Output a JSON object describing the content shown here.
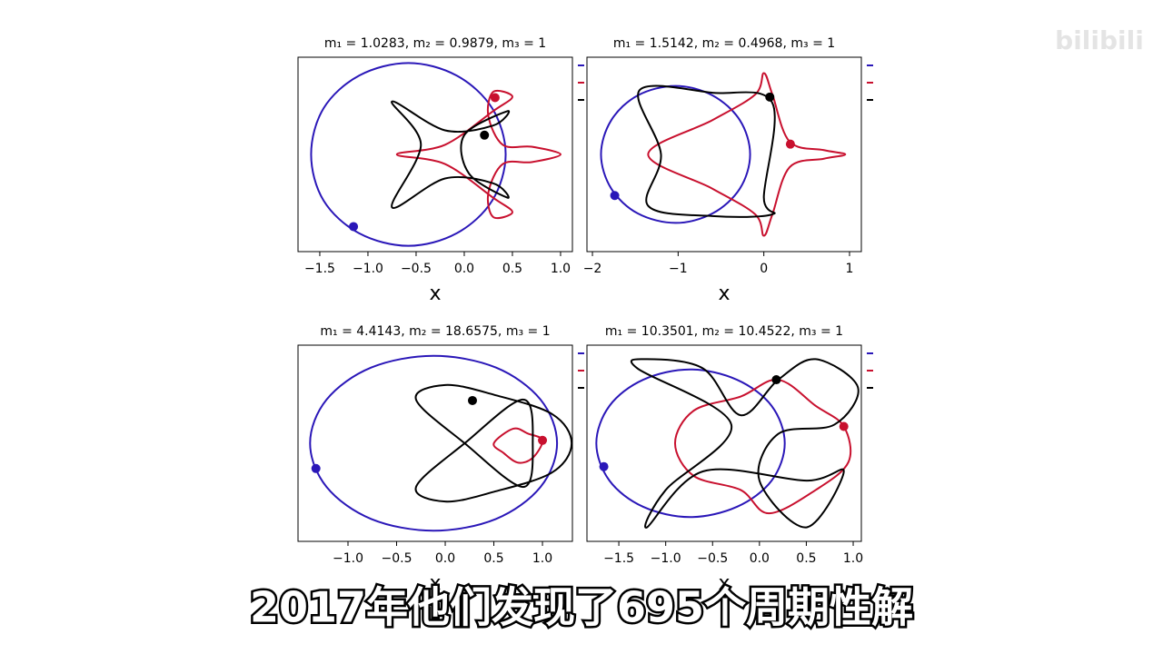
{
  "chart_data": [
    {
      "type": "orbit",
      "title": "m₁ = 1.0283, m₂ = 0.9879, m₃ = 1",
      "xlabel": "x",
      "xlim": [
        -1.726,
        1.123
      ],
      "ylim": [
        -1.01,
        1.01
      ],
      "xticks": [
        {
          "value": -1.5,
          "label": "−1.5"
        },
        {
          "value": -1,
          "label": "−1.0"
        },
        {
          "value": -0.5,
          "label": "−0.5"
        },
        {
          "value": 0,
          "label": "0.0"
        },
        0.5,
        {
          "value": 1,
          "label": "1.0"
        }
      ],
      "series": [
        {
          "color": "#2a17b8",
          "x": [
            0.43,
            0.29,
            -0.08,
            -0.58,
            -1.09,
            -1.46,
            -1.59,
            -1.46,
            -1.09,
            -0.58,
            -0.08,
            0.29
          ],
          "y": [
            0,
            0.48,
            0.82,
            0.95,
            0.82,
            0.48,
            0,
            -0.48,
            -0.82,
            -0.95,
            -0.82,
            -0.48
          ],
          "marker_x": -1.15,
          "marker_y": -0.75
        },
        {
          "color": "#c8102e",
          "x": [
            -0.7,
            -0.2,
            0.3,
            0.5,
            0.3,
            0.25,
            0.4,
            0.7,
            1.0,
            0.7,
            0.4,
            0.25,
            0.3,
            0.5,
            0.3,
            -0.2
          ],
          "y": [
            0,
            0.1,
            0.45,
            0.6,
            0.65,
            0.4,
            0.1,
            0.08,
            0,
            -0.08,
            -0.1,
            -0.4,
            -0.65,
            -0.6,
            -0.45,
            -0.1
          ],
          "marker_x": 0.32,
          "marker_y": 0.59
        },
        {
          "color": "#000000",
          "x": [
            -0.75,
            -0.45,
            -0.75,
            -0.2,
            0.3,
            0.45,
            0.05,
            0,
            0.45,
            0.3,
            -0.2
          ],
          "y": [
            0.55,
            0.1,
            -0.55,
            -0.25,
            -0.3,
            -0.45,
            -0.2,
            0.2,
            0.45,
            0.3,
            0.25
          ],
          "marker_x": 0.21,
          "marker_y": 0.2
        }
      ]
    },
    {
      "type": "orbit",
      "title": "m₁ = 1.5142, m₂ = 0.4968, m₃ = 1",
      "xlabel": "x",
      "xlim": [
        -2.064,
        1.138
      ],
      "ylim": [
        -1.135,
        1.135
      ],
      "xticks": [
        {
          "value": -2,
          "label": "−2"
        },
        {
          "value": -1,
          "label": "−1"
        },
        0,
        1
      ],
      "series": [
        {
          "color": "#2a17b8",
          "x": [
            -0.16,
            -0.28,
            -0.6,
            -1.03,
            -1.47,
            -1.78,
            -1.9,
            -1.78,
            -1.47,
            -1.03,
            -0.6,
            -0.28
          ],
          "y": [
            0,
            0.4,
            0.69,
            0.8,
            0.69,
            0.4,
            0,
            -0.4,
            -0.69,
            -0.8,
            -0.69,
            -0.4
          ],
          "marker_x": -1.74,
          "marker_y": -0.48
        },
        {
          "color": "#c8102e",
          "x": [
            -1.35,
            -0.6,
            -0.1,
            0,
            0.1,
            0.3,
            0.7,
            0.95,
            0.7,
            0.3,
            0.1,
            0,
            -0.1,
            -0.6
          ],
          "y": [
            0,
            0.4,
            0.7,
            0.95,
            0.7,
            0.15,
            0.05,
            0,
            -0.05,
            -0.15,
            -0.7,
            -0.95,
            -0.7,
            -0.4
          ],
          "marker_x": 0.31,
          "marker_y": 0.12
        },
        {
          "color": "#000000",
          "x": [
            -1.45,
            -0.6,
            0.1,
            0,
            0.1,
            -0.6,
            -1.35,
            -1.2
          ],
          "y": [
            0.75,
            0.72,
            0.6,
            -0.5,
            -0.7,
            -0.72,
            -0.6,
            0
          ],
          "marker_x": 0.07,
          "marker_y": 0.67
        }
      ]
    },
    {
      "type": "orbit",
      "title": "m₁ = 4.4143, m₂ = 18.6575, m₃ = 1",
      "xlabel": "x",
      "xlim": [
        -1.514,
        1.308
      ],
      "ylim": [
        -1.01,
        1.01
      ],
      "xticks": [
        {
          "value": -1,
          "label": "−1.0"
        },
        {
          "value": -0.5,
          "label": "−0.5"
        },
        {
          "value": 0,
          "label": "0.0"
        },
        0.5,
        {
          "value": 1,
          "label": "1.0"
        }
      ],
      "series": [
        {
          "color": "#2a17b8",
          "x": [
            1.15,
            0.98,
            0.52,
            -0.12,
            -0.76,
            -1.22,
            -1.39,
            -1.22,
            -0.76,
            -0.12,
            0.52,
            0.98
          ],
          "y": [
            0,
            0.45,
            0.78,
            0.9,
            0.78,
            0.45,
            0,
            -0.45,
            -0.78,
            -0.9,
            -0.78,
            -0.45
          ],
          "marker_x": -1.33,
          "marker_y": -0.26
        },
        {
          "color": "#c8102e",
          "x": [
            0.5,
            0.7,
            0.85,
            1.0,
            0.9,
            0.75,
            0.6
          ],
          "y": [
            0,
            0.15,
            0.1,
            0.03,
            -0.15,
            -0.2,
            -0.1
          ],
          "marker_x": 1.0,
          "marker_y": 0.03
        },
        {
          "color": "#000000",
          "x": [
            -0.3,
            0,
            0.5,
            1.1,
            1.3,
            1.1,
            0.5,
            0,
            -0.3,
            0.2,
            0.8,
            0.9,
            0.8,
            0.2
          ],
          "y": [
            0.45,
            0.6,
            0.5,
            0.3,
            0,
            -0.3,
            -0.5,
            -0.6,
            -0.45,
            0,
            0.45,
            0,
            -0.45,
            0
          ],
          "marker_x": 0.28,
          "marker_y": 0.44
        }
      ]
    },
    {
      "type": "orbit",
      "title": "m₁ = 10.3501, m₂ = 10.4522, m₃ = 1",
      "xlabel": "x",
      "xlim": [
        -1.84,
        1.087
      ],
      "ylim": [
        -1.05,
        1.05
      ],
      "xticks": [
        {
          "value": -1.5,
          "label": "−1.5"
        },
        {
          "value": -1,
          "label": "−1.0"
        },
        {
          "value": -0.5,
          "label": "−0.5"
        },
        {
          "value": 0,
          "label": "0.0"
        },
        0.5,
        {
          "value": 1,
          "label": "1.0"
        }
      ],
      "series": [
        {
          "color": "#2a17b8",
          "x": [
            0.27,
            0.13,
            -0.24,
            -0.74,
            -1.24,
            -1.6,
            -1.74,
            -1.6,
            -1.24,
            -0.74,
            -0.24,
            0.13
          ],
          "y": [
            0,
            0.4,
            0.68,
            0.79,
            0.68,
            0.4,
            0,
            -0.4,
            -0.68,
            -0.79,
            -0.68,
            -0.4
          ],
          "marker_x": -1.66,
          "marker_y": -0.25
        },
        {
          "color": "#c8102e",
          "x": [
            -0.9,
            -0.7,
            -0.2,
            0.2,
            0.6,
            0.9,
            0.95,
            0.6,
            0.1,
            -0.2,
            -0.7
          ],
          "y": [
            0,
            0.35,
            0.5,
            0.68,
            0.4,
            0.18,
            -0.2,
            -0.5,
            -0.75,
            -0.5,
            -0.35
          ],
          "marker_x": 0.9,
          "marker_y": 0.18
        },
        {
          "color": "#000000",
          "x": [
            -1.2,
            -0.6,
            -0.2,
            0.2,
            0.6,
            1.05,
            0.8,
            0.2,
            0,
            0.5,
            0.9,
            0.5,
            -0.6,
            -1.2,
            -1.0,
            -0.3,
            -1.3
          ],
          "y": [
            0.9,
            0.8,
            0.3,
            0.68,
            0.9,
            0.6,
            0.2,
            0.1,
            -0.4,
            -0.9,
            -0.3,
            -0.4,
            -0.3,
            -0.9,
            -0.5,
            0.2,
            0.8
          ],
          "marker_x": 0.18,
          "marker_y": 0.68
        }
      ]
    }
  ],
  "caption": "2017年他们发现了695个周期性解",
  "watermark": "bilibili"
}
